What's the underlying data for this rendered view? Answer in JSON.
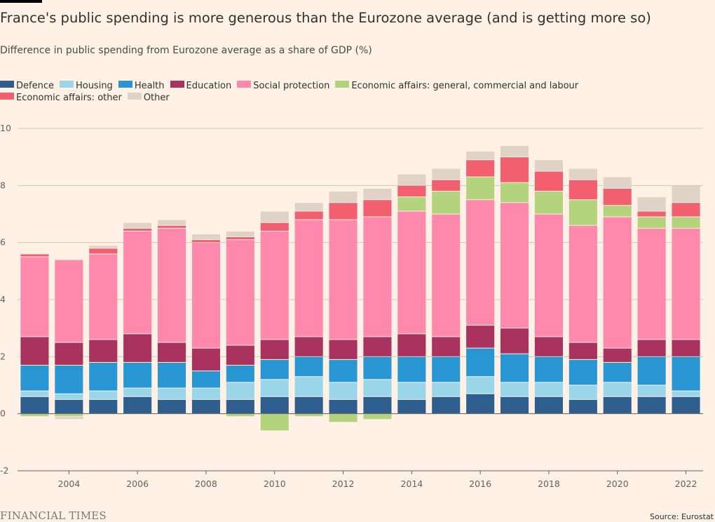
{
  "header": {
    "title": "France's public spending is more generous than the Eurozone average (and is getting more so)",
    "subtitle": "Difference in public spending from Eurozone average as a share of GDP (%)"
  },
  "footer": {
    "logo": "FINANCIAL TIMES",
    "source": "Source: Eurostat"
  },
  "chart_data": {
    "type": "bar",
    "stacked": true,
    "title": "France's public spending is more generous than the Eurozone average (and is getting more so)",
    "subtitle": "Difference in public spending from Eurozone average as a share of GDP (%)",
    "xlabel": "",
    "ylabel": "",
    "ylim": [
      -2,
      10
    ],
    "yticks": [
      -2,
      0,
      2,
      4,
      6,
      8,
      10
    ],
    "xticks": [
      "2004",
      "2006",
      "2008",
      "2010",
      "2012",
      "2014",
      "2016",
      "2018",
      "2020",
      "2022"
    ],
    "grid": true,
    "legend_position": "top",
    "categories": [
      "2003",
      "2004",
      "2005",
      "2006",
      "2007",
      "2008",
      "2009",
      "2010",
      "2011",
      "2012",
      "2013",
      "2014",
      "2015",
      "2016",
      "2017",
      "2018",
      "2019",
      "2020",
      "2021",
      "2022"
    ],
    "series": [
      {
        "name": "Defence",
        "color": "#2e5e8d",
        "values": [
          0.6,
          0.5,
          0.5,
          0.6,
          0.5,
          0.5,
          0.5,
          0.6,
          0.6,
          0.5,
          0.6,
          0.5,
          0.6,
          0.7,
          0.6,
          0.6,
          0.5,
          0.6,
          0.6,
          0.6
        ]
      },
      {
        "name": "Housing",
        "color": "#9ad6ea",
        "values": [
          0.2,
          0.2,
          0.3,
          0.3,
          0.4,
          0.4,
          0.6,
          0.6,
          0.7,
          0.6,
          0.6,
          0.6,
          0.5,
          0.6,
          0.5,
          0.5,
          0.5,
          0.5,
          0.4,
          0.2
        ]
      },
      {
        "name": "Health",
        "color": "#2896d3",
        "values": [
          0.9,
          1.0,
          1.0,
          0.9,
          0.9,
          0.6,
          0.6,
          0.7,
          0.7,
          0.8,
          0.8,
          0.9,
          0.9,
          1.0,
          1.0,
          0.9,
          0.9,
          0.7,
          1.0,
          1.2
        ]
      },
      {
        "name": "Education",
        "color": "#a9325e",
        "values": [
          1.0,
          0.8,
          0.8,
          1.0,
          0.7,
          0.8,
          0.7,
          0.7,
          0.7,
          0.7,
          0.7,
          0.8,
          0.7,
          0.8,
          0.9,
          0.7,
          0.6,
          0.5,
          0.6,
          0.6
        ]
      },
      {
        "name": "Social protection",
        "color": "#ff88ad",
        "values": [
          2.8,
          2.9,
          3.0,
          3.6,
          4.0,
          3.7,
          3.7,
          3.8,
          4.1,
          4.2,
          4.2,
          4.3,
          4.3,
          4.4,
          4.4,
          4.3,
          4.1,
          4.6,
          3.9,
          3.9
        ]
      },
      {
        "name": "Economic affairs: general, commercial and labour",
        "color": "#b3d47c",
        "values": [
          -0.1,
          -0.1,
          0.0,
          0.0,
          0.0,
          0.0,
          -0.1,
          -0.6,
          -0.1,
          -0.3,
          -0.2,
          0.5,
          0.8,
          0.8,
          0.7,
          0.8,
          0.9,
          0.4,
          0.4,
          0.4
        ]
      },
      {
        "name": "Economic affairs: other",
        "color": "#f2606f",
        "values": [
          0.1,
          0.0,
          0.2,
          0.1,
          0.1,
          0.1,
          0.1,
          0.3,
          0.3,
          0.6,
          0.6,
          0.4,
          0.4,
          0.6,
          0.9,
          0.7,
          0.7,
          0.6,
          0.2,
          0.5
        ]
      },
      {
        "name": "Other",
        "color": "#dfd3c7",
        "values": [
          0.0,
          -0.1,
          0.1,
          0.2,
          0.2,
          0.2,
          0.2,
          0.4,
          0.3,
          0.4,
          0.4,
          0.4,
          0.4,
          0.3,
          0.4,
          0.4,
          0.4,
          0.4,
          0.5,
          0.6
        ]
      }
    ]
  }
}
